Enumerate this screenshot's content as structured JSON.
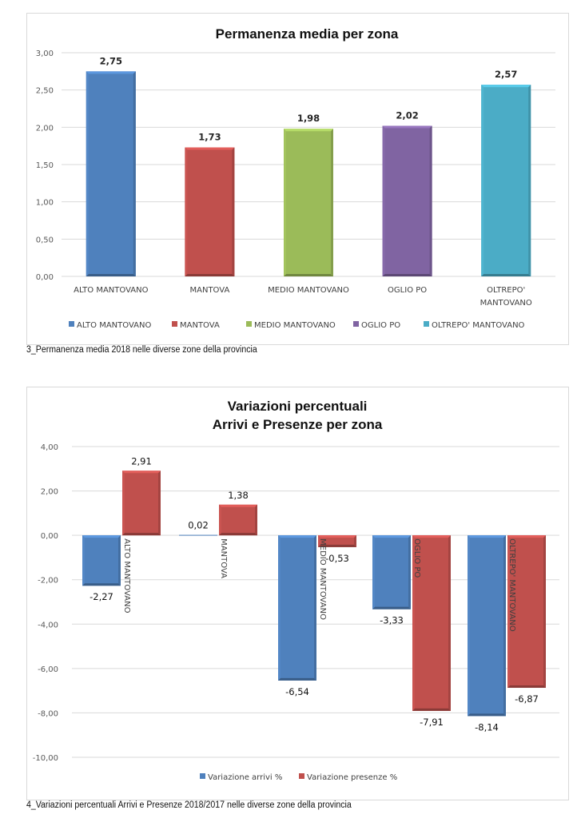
{
  "chart_data": [
    {
      "type": "bar",
      "title": "Permanenza media per zona",
      "categories": [
        "ALTO MANTOVANO",
        "MANTOVA",
        "MEDIO MANTOVANO",
        "OGLIO PO",
        "OLTREPO' MANTOVANO"
      ],
      "category_lines": [
        [
          "ALTO MANTOVANO"
        ],
        [
          "MANTOVA"
        ],
        [
          "MEDIO MANTOVANO"
        ],
        [
          "OGLIO PO"
        ],
        [
          "OLTREPO'",
          "MANTOVANO"
        ]
      ],
      "values": [
        2.75,
        1.73,
        1.98,
        2.02,
        2.57
      ],
      "value_labels": [
        "2,75",
        "1,73",
        "1,98",
        "2,02",
        "2,57"
      ],
      "colors": [
        "#4f81bd",
        "#c0504d",
        "#9bbb59",
        "#8064a2",
        "#4bacc6"
      ],
      "xlabel": "",
      "ylabel": "",
      "ylim": [
        0,
        3
      ],
      "yticks": [
        0,
        0.5,
        1,
        1.5,
        2,
        2.5,
        3
      ],
      "ytick_labels": [
        "0,00",
        "0,50",
        "1,00",
        "1,50",
        "2,00",
        "2,50",
        "3,00"
      ],
      "grid": true,
      "legend": {
        "placement": "bottom",
        "entries": [
          "ALTO MANTOVANO",
          "MANTOVA",
          "MEDIO MANTOVANO",
          "OGLIO PO",
          "OLTREPO' MANTOVANO"
        ]
      },
      "caption": "3_Permanenza media 2018 nelle diverse zone della provincia"
    },
    {
      "type": "bar",
      "title_lines": [
        "Variazioni percentuali",
        "Arrivi e Presenze per zona"
      ],
      "categories": [
        "ALTO MANTOVANO",
        "MANTOVA",
        "MEDIO MANTOVANO",
        "OGLIO PO",
        "OLTREPO' MANTOVANO"
      ],
      "series": [
        {
          "name": "Variazione arrivi %",
          "color": "#4f81bd",
          "values": [
            -2.27,
            0.02,
            -6.54,
            -3.33,
            -8.14
          ],
          "value_labels": [
            "-2,27",
            "0,02",
            "-6,54",
            "-3,33",
            "-8,14"
          ]
        },
        {
          "name": "Variazione presenze %",
          "color": "#c0504d",
          "values": [
            2.91,
            1.38,
            -0.53,
            -7.91,
            -6.87
          ],
          "value_labels": [
            "2,91",
            "1,38",
            "-0,53",
            "-7,91",
            "-6,87"
          ]
        }
      ],
      "xlabel": "",
      "ylabel": "",
      "ylim": [
        -10,
        4
      ],
      "yticks": [
        -10,
        -8,
        -6,
        -4,
        -2,
        0,
        2,
        4
      ],
      "ytick_labels": [
        "-10,00",
        "-8,00",
        "-6,00",
        "-4,00",
        "-2,00",
        "0,00",
        "2,00",
        "4,00"
      ],
      "grid": true,
      "category_label_orientation": "vertical",
      "legend": {
        "placement": "bottom",
        "entries": [
          "Variazione arrivi %",
          "Variazione presenze %"
        ]
      },
      "caption": "4_Variazioni percentuali Arrivi e Presenze 2018/2017 nelle diverse zone della provincia"
    }
  ]
}
